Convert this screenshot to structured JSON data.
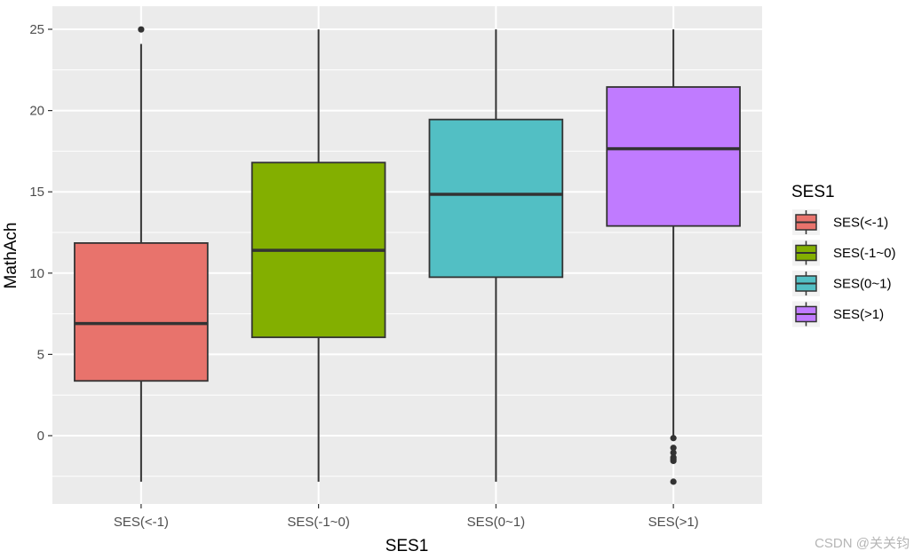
{
  "chart_data": {
    "type": "boxplot",
    "title": "",
    "xlabel": "SES1",
    "ylabel": "MathAch",
    "ylim": [
      -2.832,
      25
    ],
    "y_ticks": [
      0,
      5,
      10,
      15,
      20,
      25
    ],
    "grid": true,
    "legend": {
      "title": "SES1",
      "placement": "right"
    },
    "categories": [
      "SES(<-1)",
      "SES(-1~0)",
      "SES(0~1)",
      "SES(>1)"
    ],
    "series": [
      {
        "name": "SES(<-1)",
        "color": "#E8736C",
        "min": -2.832,
        "q1": 3.37,
        "median": 6.9,
        "q3": 11.85,
        "max": 24.1,
        "outliers": [
          24.99
        ]
      },
      {
        "name": "SES(-1~0)",
        "color": "#83AF00",
        "min": -2.832,
        "q1": 6.05,
        "median": 11.4,
        "q3": 16.8,
        "max": 24.99,
        "outliers": []
      },
      {
        "name": "SES(0~1)",
        "color": "#52BFC4",
        "min": -2.832,
        "q1": 9.75,
        "median": 14.85,
        "q3": 19.45,
        "max": 24.99,
        "outliers": []
      },
      {
        "name": "SES(>1)",
        "color": "#C07BFF",
        "min": -0.05,
        "q1": 12.9,
        "median": 17.65,
        "q3": 21.45,
        "max": 24.99,
        "outliers": [
          -0.15,
          -0.75,
          -1.05,
          -1.35,
          -1.45,
          -1.55,
          -2.832
        ]
      }
    ]
  },
  "watermark": "CSDN @关关钧"
}
